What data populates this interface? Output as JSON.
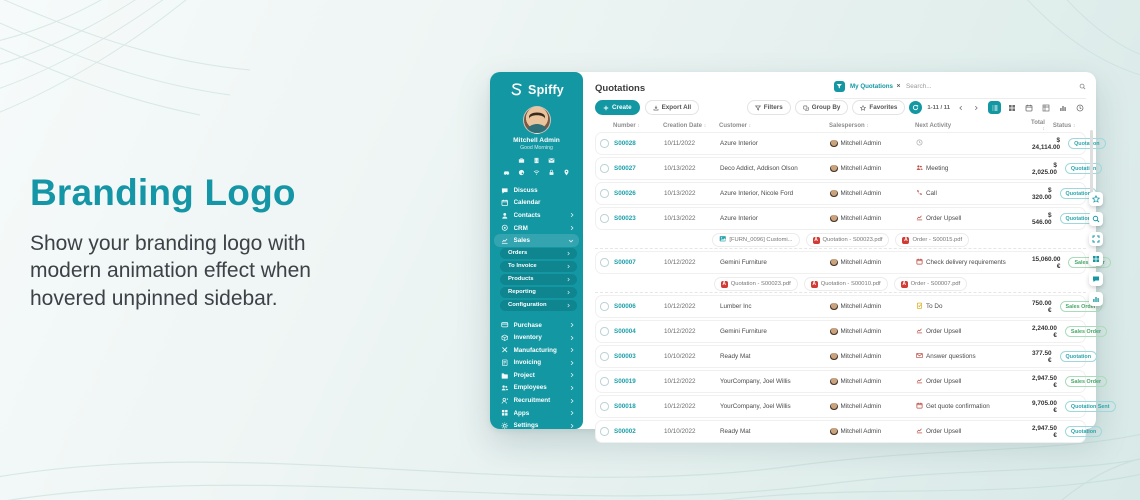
{
  "hero": {
    "title": "Branding Logo",
    "description": "Show your branding logo with modern animation effect when hovered unpinned sidebar."
  },
  "colors": {
    "accent_teal": "#1397a3",
    "heading_teal": "#1596a6",
    "status_quotation": "#2ba6ae",
    "status_sales_order": "#47a869",
    "pdf_red": "#d23b35",
    "todo_amber": "#d7a400",
    "activity_red": "#b8443a"
  },
  "sidebar": {
    "logo_text": "Spiffy",
    "logo_icon": "spiffy-s-icon",
    "user_name": "Mitchell Admin",
    "greeting": "Good Morning",
    "quick_icons_row1": [
      "briefcase",
      "building",
      "mail"
    ],
    "quick_icons_row2": [
      "car",
      "palette",
      "wifi",
      "lock",
      "pin"
    ],
    "menu_top": [
      {
        "label": "Discuss",
        "icon": "chat",
        "chevron": null,
        "active": false
      },
      {
        "label": "Calendar",
        "icon": "calendar",
        "chevron": null,
        "active": false
      },
      {
        "label": "Contacts",
        "icon": "contact",
        "chevron": "right",
        "active": false
      },
      {
        "label": "CRM",
        "icon": "crm",
        "chevron": "right",
        "active": false
      },
      {
        "label": "Sales",
        "icon": "sales",
        "chevron": "down",
        "active": true
      }
    ],
    "sales_children": [
      {
        "label": "Orders"
      },
      {
        "label": "To Invoice"
      },
      {
        "label": "Products"
      },
      {
        "label": "Reporting"
      },
      {
        "label": "Configuration"
      }
    ],
    "menu_lower": [
      {
        "label": "Purchase",
        "icon": "purchase",
        "chevron": "right"
      },
      {
        "label": "Inventory",
        "icon": "inventory",
        "chevron": "right"
      },
      {
        "label": "Manufacturing",
        "icon": "manufacturing",
        "chevron": "right"
      },
      {
        "label": "Invoicing",
        "icon": "invoicing",
        "chevron": "right"
      },
      {
        "label": "Project",
        "icon": "project",
        "chevron": "right"
      },
      {
        "label": "Employees",
        "icon": "employees",
        "chevron": "right"
      },
      {
        "label": "Recruitment",
        "icon": "recruitment",
        "chevron": "right"
      },
      {
        "label": "Apps",
        "icon": "apps",
        "chevron": "right"
      },
      {
        "label": "Settings",
        "icon": "settings",
        "chevron": "right"
      }
    ]
  },
  "topbar": {
    "title": "Quotations",
    "filter_chip": "My Quotations",
    "search_placeholder": "Search...",
    "create_label": "Create",
    "export_label": "Export All",
    "filters_label": "Filters",
    "groupby_label": "Group By",
    "favorites_label": "Favorites",
    "pagination": "1-11 / 11",
    "views": [
      {
        "icon": "list",
        "active": true
      },
      {
        "icon": "kanban",
        "active": false
      },
      {
        "icon": "calendar",
        "active": false
      },
      {
        "icon": "pivot",
        "active": false
      },
      {
        "icon": "bars",
        "active": false
      },
      {
        "icon": "clock",
        "active": false
      }
    ]
  },
  "table": {
    "headers": [
      {
        "label": "Number",
        "sortable": true
      },
      {
        "label": "Creation Date",
        "sortable": true
      },
      {
        "label": "Customer",
        "sortable": true
      },
      {
        "label": "Salesperson",
        "sortable": true
      },
      {
        "label": "Next Activity",
        "sortable": false
      },
      {
        "label": "Total",
        "sortable": true
      },
      {
        "label": "Status",
        "sortable": true
      }
    ],
    "rows": [
      {
        "number": "S00028",
        "date": "10/11/2022",
        "customer": "Azure Interior",
        "salesperson": "Mitchell Admin",
        "activity": "",
        "activity_icon": "clock",
        "activity_color": "#a9a9a9",
        "total": "$ 24,114.00",
        "status": "Quotation",
        "status_type": "quotation"
      },
      {
        "number": "S00027",
        "date": "10/13/2022",
        "customer": "Deco Addict, Addison Olson",
        "salesperson": "Mitchell Admin",
        "activity": "Meeting",
        "activity_icon": "people",
        "activity_color": "#b8443a",
        "total": "$ 2,025.00",
        "status": "Quotation",
        "status_type": "quotation"
      },
      {
        "number": "S00026",
        "date": "10/13/2022",
        "customer": "Azure Interior, Nicole Ford",
        "salesperson": "Mitchell Admin",
        "activity": "Call",
        "activity_icon": "phone",
        "activity_color": "#b8443a",
        "total": "$ 320.00",
        "status": "Quotation",
        "status_type": "quotation"
      },
      {
        "number": "S00023",
        "date": "10/13/2022",
        "customer": "Azure Interior",
        "salesperson": "Mitchell Admin",
        "activity": "Order Upsell",
        "activity_icon": "chart-up",
        "activity_color": "#b8443a",
        "total": "$ 546.00",
        "status": "Quotation",
        "status_type": "quotation",
        "attachments": [
          {
            "icon": "image",
            "label": "[FURN_0096] Customi..."
          },
          {
            "icon": "pdf",
            "label": "Quotation - S00023.pdf"
          },
          {
            "icon": "pdf",
            "label": "Order - S00015.pdf"
          }
        ]
      },
      {
        "number": "S00007",
        "date": "10/12/2022",
        "customer": "Gemini Furniture",
        "salesperson": "Mitchell Admin",
        "activity": "Check delivery requirements",
        "activity_icon": "calendar",
        "activity_color": "#b8443a",
        "total": "15,060.00 €",
        "status": "Sales Order",
        "status_type": "sales-order",
        "attachments": [
          {
            "icon": "pdf",
            "label": "Quotation - S00023.pdf"
          },
          {
            "icon": "pdf",
            "label": "Quotation - S00010.pdf"
          },
          {
            "icon": "pdf",
            "label": "Order - S00007.pdf"
          }
        ]
      },
      {
        "number": "S00006",
        "date": "10/12/2022",
        "customer": "Lumber Inc",
        "salesperson": "Mitchell Admin",
        "activity": "To Do",
        "activity_icon": "todo",
        "activity_color": "#d7a400",
        "total": "750.00 €",
        "status": "Sales Order",
        "status_type": "sales-order"
      },
      {
        "number": "S00004",
        "date": "10/12/2022",
        "customer": "Gemini Furniture",
        "salesperson": "Mitchell Admin",
        "activity": "Order Upsell",
        "activity_icon": "chart-up",
        "activity_color": "#b8443a",
        "total": "2,240.00 €",
        "status": "Sales Order",
        "status_type": "sales-order"
      },
      {
        "number": "S00003",
        "date": "10/10/2022",
        "customer": "Ready Mat",
        "salesperson": "Mitchell Admin",
        "activity": "Answer questions",
        "activity_icon": "envelope",
        "activity_color": "#b8443a",
        "total": "377.50 €",
        "status": "Quotation",
        "status_type": "quotation"
      },
      {
        "number": "S00019",
        "date": "10/12/2022",
        "customer": "YourCompany, Joel Willis",
        "salesperson": "Mitchell Admin",
        "activity": "Order Upsell",
        "activity_icon": "chart-up",
        "activity_color": "#b8443a",
        "total": "2,947.50 €",
        "status": "Sales Order",
        "status_type": "sales-order"
      },
      {
        "number": "S00018",
        "date": "10/12/2022",
        "customer": "YourCompany, Joel Willis",
        "salesperson": "Mitchell Admin",
        "activity": "Get quote confirmation",
        "activity_icon": "calendar",
        "activity_color": "#b8443a",
        "total": "9,705.00 €",
        "status": "Quotation Sent",
        "status_type": "quotation-sent"
      },
      {
        "number": "S00002",
        "date": "10/10/2022",
        "customer": "Ready Mat",
        "salesperson": "Mitchell Admin",
        "activity": "Order Upsell",
        "activity_icon": "chart-up",
        "activity_color": "#b8443a",
        "total": "2,947.50 €",
        "status": "Quotation",
        "status_type": "quotation"
      }
    ]
  },
  "right_toolbar": [
    "star",
    "search",
    "expand",
    "kanban",
    "chat",
    "bars"
  ]
}
